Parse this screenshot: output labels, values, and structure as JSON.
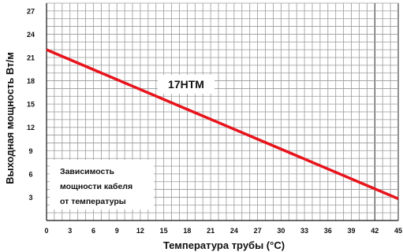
{
  "chart_data": {
    "type": "line",
    "title": "",
    "xlabel": "Температура трубы (°C)",
    "ylabel": "Выходная мощность Вт/м",
    "xlim": [
      0,
      45
    ],
    "ylim": [
      0,
      28
    ],
    "x_ticks": [
      "0",
      "3",
      "6",
      "9",
      "12",
      "15",
      "18",
      "21",
      "24",
      "27",
      "30",
      "33",
      "36",
      "39",
      "42",
      "45"
    ],
    "y_ticks": [
      "3",
      "6",
      "9",
      "12",
      "15",
      "18",
      "21",
      "24",
      "27"
    ],
    "grid": true,
    "series": [
      {
        "name": "17НТМ",
        "color": "#e8141c",
        "x": [
          0,
          45
        ],
        "y": [
          22,
          2.8
        ]
      }
    ],
    "annotation": {
      "lines": [
        "Зависимость",
        "мощности кабеля",
        "от температуры"
      ]
    }
  }
}
